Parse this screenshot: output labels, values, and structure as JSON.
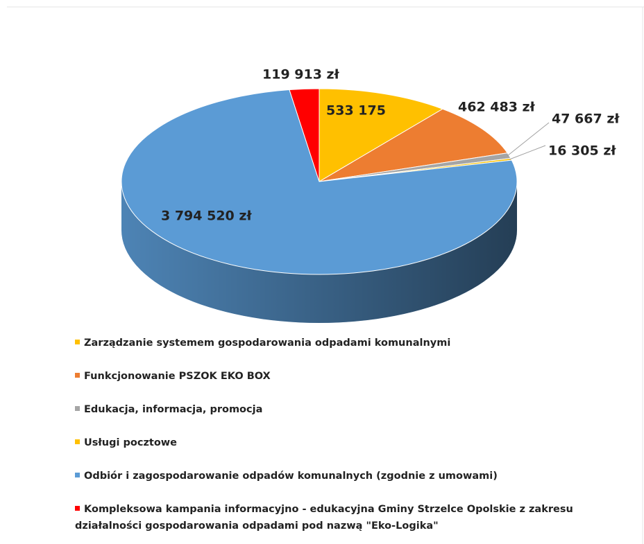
{
  "chart_data": {
    "type": "pie",
    "categories": [
      "Zarządzanie systemem gospodarowania odpadami komunalnymi",
      "Funkcjonowanie PSZOK EKO BOX",
      "Edukacja, informacja, promocja",
      "Usługi pocztowe",
      "Odbiór i zagospodarowanie odpadów komunalnych (zgodnie z umowami)",
      "Kompleksowa kampania informacyjno - edukacyjna Gminy Strzelce Opolskie z zakresu działalności gospodarowania odpadami pod nazwą \"Eko-Logika\""
    ],
    "values": [
      533175,
      462483,
      47667,
      16305,
      3794520,
      119913
    ],
    "value_labels": [
      "533 175",
      "462 483 zł",
      "47 667 zł",
      "16 305 zł",
      "3 794 520 zł",
      "119 913 zł"
    ],
    "colors": [
      "#FFC000",
      "#ED7D31",
      "#A5A5A5",
      "#FFC000",
      "#5B9BD5",
      "#FF0000"
    ]
  }
}
